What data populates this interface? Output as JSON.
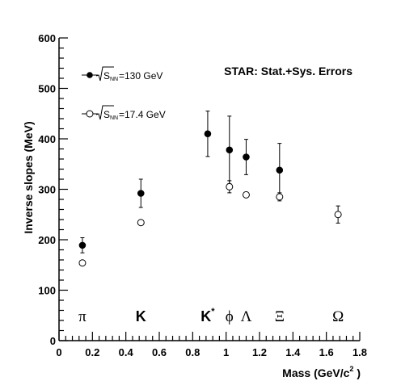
{
  "chart_data": {
    "type": "scatter",
    "annotation": "STAR: Stat.+Sys. Errors",
    "xlabel": "Mass (GeV/c",
    "xlabel_sup": "2",
    "xlabel_close": " )",
    "ylabel": "Inverse slopes (MeV)",
    "xlim": [
      0,
      1.8
    ],
    "ylim": [
      0,
      600
    ],
    "xticks": [
      "0",
      "0.2",
      "0.4",
      "0.6",
      "0.8",
      "1",
      "1.2",
      "1.4",
      "1.6",
      "1.8"
    ],
    "yticks": [
      "0",
      "100",
      "200",
      "300",
      "400",
      "500",
      "600"
    ],
    "legend": [
      {
        "prefix": "S",
        "sub": "NN",
        "text": "=130 GeV",
        "marker": "filled"
      },
      {
        "prefix": "S",
        "sub": "NN",
        "text": "=17.4 GeV",
        "marker": "open"
      }
    ],
    "particles": [
      {
        "label": "π",
        "x": 0.14,
        "style": "serif"
      },
      {
        "label": "K",
        "x": 0.49,
        "style": "bold"
      },
      {
        "label": "K",
        "sup": "*",
        "x": 0.89,
        "style": "bold"
      },
      {
        "label": "ϕ",
        "x": 1.02,
        "style": "serif"
      },
      {
        "label": "Λ",
        "x": 1.12,
        "style": "serif"
      },
      {
        "label": "Ξ",
        "x": 1.32,
        "style": "serif"
      },
      {
        "label": "Ω",
        "x": 1.67,
        "style": "serif"
      }
    ],
    "series": [
      {
        "marker": "filled",
        "points": [
          {
            "x": 0.14,
            "y": 189,
            "err": 15
          },
          {
            "x": 0.49,
            "y": 292,
            "err": 28
          },
          {
            "x": 0.89,
            "y": 410,
            "err": 45
          },
          {
            "x": 1.02,
            "y": 378,
            "err": 67
          },
          {
            "x": 1.12,
            "y": 364,
            "err": 35
          },
          {
            "x": 1.32,
            "y": 338,
            "err": 53
          }
        ]
      },
      {
        "marker": "open",
        "points": [
          {
            "x": 0.14,
            "y": 154,
            "err": 0
          },
          {
            "x": 0.49,
            "y": 234,
            "err": 0
          },
          {
            "x": 1.02,
            "y": 305,
            "err": 12
          },
          {
            "x": 1.12,
            "y": 289,
            "err": 0
          },
          {
            "x": 1.32,
            "y": 285,
            "err": 8
          },
          {
            "x": 1.67,
            "y": 250,
            "err": 17
          }
        ]
      }
    ]
  }
}
